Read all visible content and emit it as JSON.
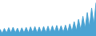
{
  "chart_data": {
    "type": "area",
    "values": [
      45000,
      18000,
      50000,
      20000,
      55000,
      22000,
      58000,
      21000,
      52000,
      19000,
      54000,
      21000,
      57000,
      22000,
      60000,
      23000,
      62000,
      22000,
      59000,
      21000,
      63000,
      23000,
      65000,
      24000,
      67000,
      25000,
      70000,
      26000,
      68000,
      24000,
      72000,
      27000,
      80000,
      30000,
      95000,
      35000,
      110000,
      40000,
      130000,
      50000,
      155000,
      60000,
      185000,
      75000,
      220000
    ],
    "color": "#4ba3d3",
    "ylim": [
      0,
      237600
    ],
    "tick_labels": false,
    "grid": false
  }
}
